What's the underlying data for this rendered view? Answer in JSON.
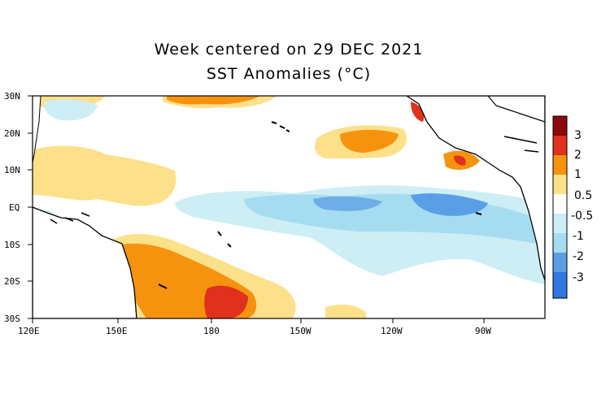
{
  "title_line1": "Week centered on 29 DEC 2021",
  "title_line2": "SST Anomalies (°C)",
  "lat_labels": [
    "30N",
    "20N",
    "10N",
    "EQ",
    "10S",
    "20S",
    "30S"
  ],
  "lon_labels": [
    "120E",
    "150E",
    "180",
    "150W",
    "120W",
    "90W"
  ],
  "colorbar": {
    "labels": [
      "3",
      "2",
      "1",
      "0.5",
      "-0.5",
      "-1",
      "-2",
      "-3"
    ],
    "colors": {
      "p3": "#8c0a0a",
      "p2": "#e0301e",
      "p1": "#f5930f",
      "p05": "#fde08a",
      "zero": "#ffffff",
      "m05": "#cdeef5",
      "m1": "#a6dcf0",
      "m2": "#5a9fe6",
      "m3": "#2e78e0"
    }
  }
}
